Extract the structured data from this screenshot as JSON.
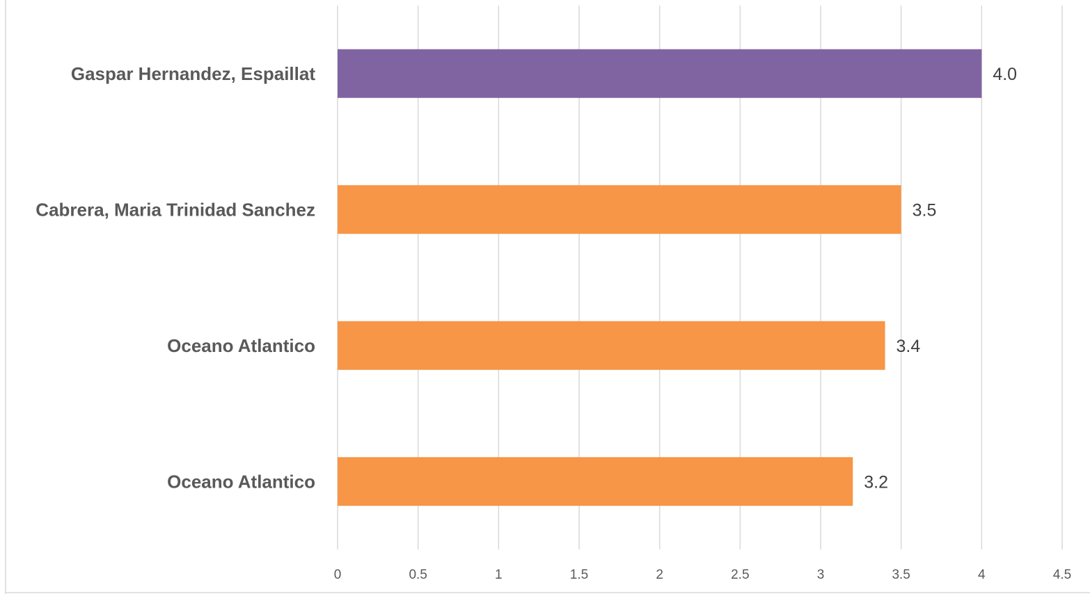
{
  "chart_data": {
    "type": "bar",
    "orientation": "horizontal",
    "title": "",
    "xlabel": "",
    "ylabel": "",
    "xlim": [
      0,
      4.5
    ],
    "x_ticks": [
      "0",
      "0.5",
      "1",
      "1.5",
      "2",
      "2.5",
      "3",
      "3.5",
      "4",
      "4.5"
    ],
    "grid": true,
    "legend": "none",
    "categories": [
      "Gaspar Hernandez, Espaillat",
      "Cabrera, Maria Trinidad Sanchez",
      "Oceano Atlantico",
      "Oceano Atlantico"
    ],
    "values": [
      4.0,
      3.5,
      3.4,
      3.2
    ],
    "data_labels": [
      "4.0",
      "3.5",
      "3.4",
      "3.2"
    ],
    "colors": [
      "#8064a2",
      "#f79646",
      "#f79646",
      "#f79646"
    ]
  }
}
